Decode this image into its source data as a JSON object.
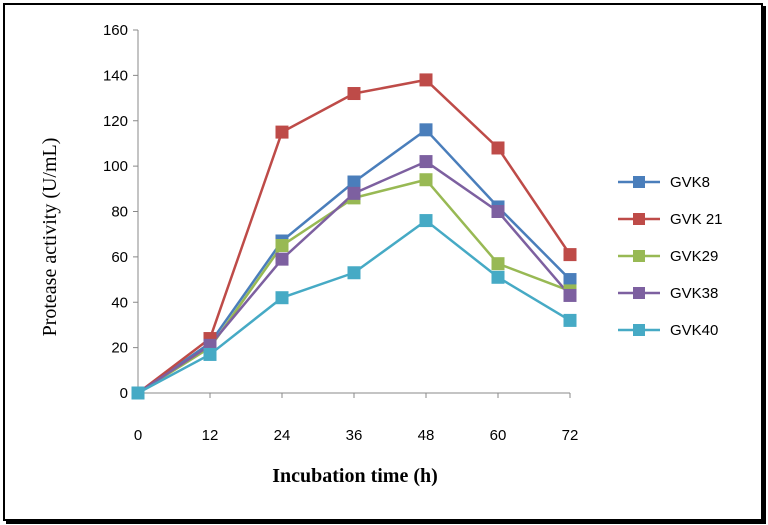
{
  "chart_data": {
    "type": "line",
    "title": "",
    "xlabel": "Incubation time (h)",
    "ylabel": "Protease activity (U/mL)",
    "x": [
      0,
      12,
      24,
      36,
      48,
      60,
      72
    ],
    "xlim": [
      0,
      72
    ],
    "ylim": [
      0,
      160
    ],
    "yticks": [
      0,
      20,
      40,
      60,
      80,
      100,
      120,
      140,
      160
    ],
    "grid": false,
    "legend": "right",
    "series": [
      {
        "name": "GVK8",
        "color": "#4a7ebb",
        "values": [
          0,
          22,
          67,
          93,
          116,
          82,
          50
        ]
      },
      {
        "name": "GVK 21",
        "color": "#be4b48",
        "values": [
          0,
          24,
          115,
          132,
          138,
          108,
          61
        ]
      },
      {
        "name": "GVK29",
        "color": "#98b954",
        "values": [
          0,
          20,
          65,
          86,
          94,
          57,
          45
        ]
      },
      {
        "name": "GVK38",
        "color": "#7d60a0",
        "values": [
          0,
          21,
          59,
          88,
          102,
          80,
          43
        ]
      },
      {
        "name": "GVK40",
        "color": "#46aac5",
        "values": [
          0,
          17,
          42,
          53,
          76,
          51,
          32
        ]
      }
    ]
  }
}
